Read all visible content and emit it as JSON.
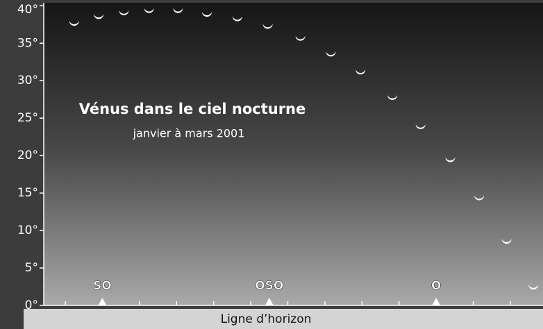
{
  "chart_data": {
    "type": "scatter",
    "title": "Vénus dans le ciel nocturne",
    "subtitle": "janvier à mars 2001",
    "xlabel": "Ligne d’horizon",
    "x": [
      221.2,
      224.5,
      227.9,
      231.3,
      235.2,
      239.1,
      243.2,
      247.3,
      251.7,
      255.8,
      259.8,
      264.1,
      267.9,
      271.9,
      275.8,
      279.5,
      283.1
    ],
    "values": [
      37.7,
      38.6,
      39.1,
      39.4,
      39.4,
      38.9,
      38.3,
      37.3,
      35.7,
      33.6,
      31.2,
      27.8,
      23.9,
      19.5,
      14.4,
      8.6,
      2.5
    ],
    "color": "#ffffff",
    "xlim": [
      217.1,
      284.4
    ],
    "ylim": [
      0,
      40.4
    ],
    "xticks": [
      {
        "value": 225,
        "label": "SO"
      },
      {
        "value": 247.5,
        "label": "OSO"
      },
      {
        "value": 270,
        "label": "O"
      }
    ],
    "xminorticks": [
      220,
      230,
      235,
      240,
      245,
      250,
      255,
      260,
      265,
      275,
      280
    ],
    "yticks": [
      {
        "value": 0,
        "label": "0°"
      },
      {
        "value": 5,
        "label": "5°"
      },
      {
        "value": 10,
        "label": "10°"
      },
      {
        "value": 15,
        "label": "15°"
      },
      {
        "value": 20,
        "label": "20°"
      },
      {
        "value": 25,
        "label": "25°"
      },
      {
        "value": 30,
        "label": "30°"
      },
      {
        "value": 35,
        "label": "35°"
      },
      {
        "value": 40,
        "label": "40°"
      }
    ]
  }
}
